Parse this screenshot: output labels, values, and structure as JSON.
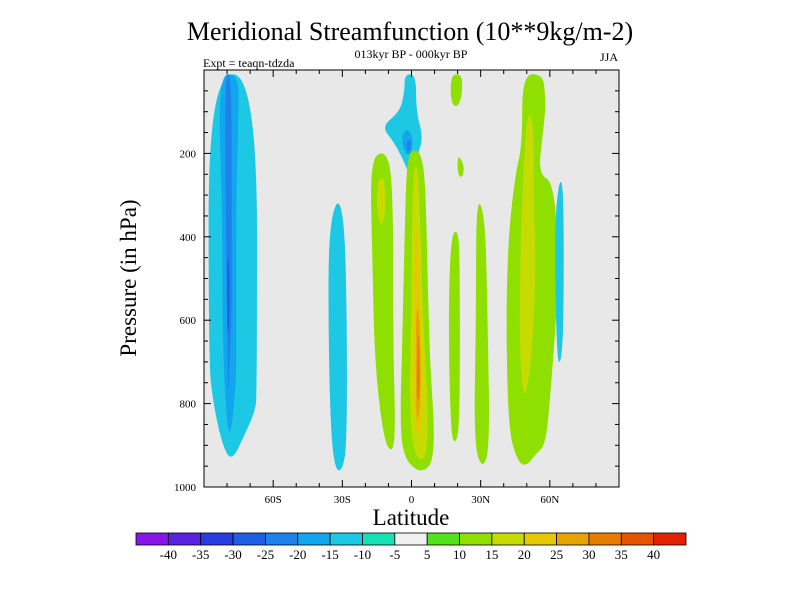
{
  "chart_data": {
    "type": "filled-contour",
    "title": "Meridional Streamfunction (10**9kg/m-2)",
    "subtitle": "013kyr BP - 000kyr BP",
    "left_label": "Expt = teaqn-tdzda",
    "right_label": "JJA",
    "xlabel": "Latitude",
    "ylabel": "Pressure (in hPa)",
    "x_ticks": [
      "60S",
      "30S",
      "0",
      "30N",
      "60N"
    ],
    "x_tick_values": [
      -60,
      -30,
      0,
      30,
      60
    ],
    "xlim": [
      -90,
      90
    ],
    "y_ticks": [
      "200",
      "400",
      "600",
      "800",
      "1000"
    ],
    "y_tick_values": [
      200,
      400,
      600,
      800,
      1000
    ],
    "ylim": [
      1000,
      0
    ],
    "background_color": "#e8e8e8",
    "colorbar": {
      "labels": [
        "-40",
        "-35",
        "-30",
        "-25",
        "-20",
        "-15",
        "-10",
        "-5",
        "5",
        "10",
        "15",
        "20",
        "25",
        "30",
        "35",
        "40"
      ],
      "colors": [
        "#8a13e8",
        "#5a22e0",
        "#2a3de0",
        "#1f5fe6",
        "#1f82ea",
        "#11a6ee",
        "#1cc8e4",
        "#16e0b4",
        "#f0f0f0",
        "#52e21c",
        "#8fe000",
        "#c6dc00",
        "#e6c800",
        "#e7a400",
        "#e67c00",
        "#e65400",
        "#e22200"
      ]
    },
    "regions": [
      {
        "name": "southern-cell-outer",
        "level": -10,
        "polygon": [
          [
            -88,
            10
          ],
          [
            -67,
            10
          ],
          [
            -67,
            780
          ],
          [
            -68,
            820
          ],
          [
            -72,
            870
          ],
          [
            -78,
            940
          ],
          [
            -82,
            900
          ],
          [
            -86,
            800
          ],
          [
            -88,
            700
          ]
        ]
      },
      {
        "name": "southern-cell-mid",
        "level": -15,
        "polygon": [
          [
            -84,
            10
          ],
          [
            -75,
            10
          ],
          [
            -75,
            100
          ],
          [
            -76,
            300
          ],
          [
            -76,
            600
          ],
          [
            -76,
            760
          ],
          [
            -79,
            900
          ],
          [
            -81,
            780
          ],
          [
            -82,
            600
          ],
          [
            -82,
            350
          ]
        ]
      },
      {
        "name": "southern-cell-core",
        "level": -20,
        "polygon": [
          [
            -81,
            10
          ],
          [
            -78,
            10
          ],
          [
            -78,
            400
          ],
          [
            -78,
            600
          ],
          [
            -79,
            700
          ],
          [
            -79.5,
            800
          ],
          [
            -80,
            600
          ],
          [
            -80.5,
            400
          ]
        ]
      },
      {
        "name": "southern-cell-max",
        "level": -25,
        "polygon": [
          [
            -80,
            450
          ],
          [
            -79,
            450
          ],
          [
            -79,
            600
          ],
          [
            -79.5,
            640
          ],
          [
            -80,
            600
          ]
        ]
      },
      {
        "name": "band-30s-negative",
        "level": -10,
        "polygon": [
          [
            -36,
            390
          ],
          [
            -32,
            300
          ],
          [
            -29,
            370
          ],
          [
            -28,
            600
          ],
          [
            -28,
            900
          ],
          [
            -30,
            960
          ],
          [
            -33,
            960
          ],
          [
            -35,
            870
          ],
          [
            -36,
            650
          ]
        ]
      },
      {
        "name": "tropical-upper-negative",
        "level": -10,
        "polygon": [
          [
            -3,
            10
          ],
          [
            2,
            10
          ],
          [
            2,
            100
          ],
          [
            5,
            160
          ],
          [
            3,
            200
          ],
          [
            0,
            240
          ],
          [
            -1,
            250
          ],
          [
            -4,
            210
          ],
          [
            -8,
            170
          ],
          [
            -13,
            135
          ],
          [
            -5,
            100
          ],
          [
            -3,
            50
          ]
        ]
      },
      {
        "name": "tropical-upper-core",
        "level": -15,
        "polygon": [
          [
            -4,
            150
          ],
          [
            -1,
            140
          ],
          [
            1,
            175
          ],
          [
            -1,
            210
          ],
          [
            -4,
            185
          ]
        ]
      },
      {
        "name": "tropical-upper-max",
        "level": -20,
        "polygon": [
          [
            -2.5,
            175
          ],
          [
            -0.8,
            165
          ],
          [
            0,
            180
          ],
          [
            -1.5,
            200
          ]
        ]
      },
      {
        "name": "southern-tropical-cell",
        "level": 10,
        "polygon": [
          [
            -18,
            220
          ],
          [
            -12,
            190
          ],
          [
            -8,
            250
          ],
          [
            -8,
            650
          ],
          [
            -7,
            850
          ],
          [
            -8,
            920
          ],
          [
            -12,
            890
          ],
          [
            -16,
            700
          ],
          [
            -17,
            450
          ]
        ]
      },
      {
        "name": "southern-tropical-core",
        "level": 15,
        "polygon": [
          [
            -15,
            270
          ],
          [
            -12,
            250
          ],
          [
            -11,
            330
          ],
          [
            -13,
            380
          ],
          [
            -15,
            340
          ]
        ]
      },
      {
        "name": "equatorial-cell-outer",
        "level": 10,
        "polygon": [
          [
            -2,
            210
          ],
          [
            1,
            190
          ],
          [
            4,
            200
          ],
          [
            6,
            260
          ],
          [
            7,
            500
          ],
          [
            8,
            700
          ],
          [
            10,
            870
          ],
          [
            9,
            940
          ],
          [
            6,
            960
          ],
          [
            2,
            960
          ],
          [
            -3,
            930
          ],
          [
            -5,
            860
          ],
          [
            -4,
            650
          ],
          [
            -3,
            400
          ]
        ]
      },
      {
        "name": "equatorial-cell-mid",
        "level": 15,
        "polygon": [
          [
            1,
            220
          ],
          [
            3,
            240
          ],
          [
            4,
            400
          ],
          [
            5,
            600
          ],
          [
            7,
            800
          ],
          [
            7,
            900
          ],
          [
            5,
            940
          ],
          [
            1,
            920
          ],
          [
            -1,
            800
          ],
          [
            0,
            600
          ],
          [
            0,
            400
          ]
        ]
      },
      {
        "name": "equatorial-cell-inner",
        "level": 20,
        "polygon": [
          [
            2,
            380
          ],
          [
            3,
            420
          ],
          [
            4,
            600
          ],
          [
            5,
            780
          ],
          [
            4,
            860
          ],
          [
            2,
            880
          ],
          [
            1,
            780
          ],
          [
            1,
            600
          ],
          [
            1.5,
            450
          ]
        ]
      },
      {
        "name": "equatorial-cell-core",
        "level": 25,
        "polygon": [
          [
            2.5,
            560
          ],
          [
            3.5,
            600
          ],
          [
            4,
            720
          ],
          [
            3.5,
            830
          ],
          [
            2,
            840
          ],
          [
            2,
            700
          ],
          [
            2,
            600
          ]
        ]
      },
      {
        "name": "equatorial-cell-max",
        "level": 30,
        "polygon": [
          [
            3,
            620
          ],
          [
            3.5,
            680
          ],
          [
            3.5,
            780
          ],
          [
            2.5,
            800
          ],
          [
            2.5,
            700
          ]
        ]
      },
      {
        "name": "tropical-top-positive",
        "level": 10,
        "polygon": [
          [
            17,
            10
          ],
          [
            22,
            10
          ],
          [
            22,
            60
          ],
          [
            20,
            90
          ],
          [
            17,
            80
          ]
        ]
      },
      {
        "name": "band-20n",
        "level": 10,
        "polygon": [
          [
            17,
            400
          ],
          [
            20,
            380
          ],
          [
            21,
            450
          ],
          [
            21,
            850
          ],
          [
            19,
            900
          ],
          [
            17,
            870
          ],
          [
            16,
            600
          ]
        ]
      },
      {
        "name": "spot-25n",
        "level": 10,
        "polygon": [
          [
            20,
            200
          ],
          [
            23,
            230
          ],
          [
            22,
            260
          ],
          [
            20,
            250
          ]
        ]
      },
      {
        "name": "band-35n",
        "level": 10,
        "polygon": [
          [
            28,
            300
          ],
          [
            32,
            350
          ],
          [
            33,
            600
          ],
          [
            34,
            900
          ],
          [
            31,
            960
          ],
          [
            27,
            900
          ],
          [
            28,
            600
          ]
        ]
      },
      {
        "name": "northern-cell-outer",
        "level": 10,
        "polygon": [
          [
            48,
            10
          ],
          [
            57,
            10
          ],
          [
            58,
            60
          ],
          [
            58,
            100
          ],
          [
            57,
            150
          ],
          [
            55,
            250
          ],
          [
            62,
            270
          ],
          [
            64,
            500
          ],
          [
            60,
            800
          ],
          [
            58,
            900
          ],
          [
            54,
            920
          ],
          [
            50,
            950
          ],
          [
            46,
            940
          ],
          [
            42,
            860
          ],
          [
            41,
            600
          ],
          [
            42,
            400
          ],
          [
            45,
            250
          ],
          [
            48,
            180
          ]
        ]
      },
      {
        "name": "northern-cell-core",
        "level": 15,
        "polygon": [
          [
            50,
            100
          ],
          [
            53,
            120
          ],
          [
            53,
            300
          ],
          [
            54,
            500
          ],
          [
            52,
            700
          ],
          [
            49,
            800
          ],
          [
            47,
            700
          ],
          [
            47,
            500
          ],
          [
            48,
            300
          ]
        ]
      },
      {
        "name": "arctic-negative",
        "level": -10,
        "polygon": [
          [
            62,
            380
          ],
          [
            64,
            260
          ],
          [
            66,
            280
          ],
          [
            66,
            600
          ],
          [
            65,
            700
          ],
          [
            63,
            700
          ]
        ]
      }
    ]
  }
}
